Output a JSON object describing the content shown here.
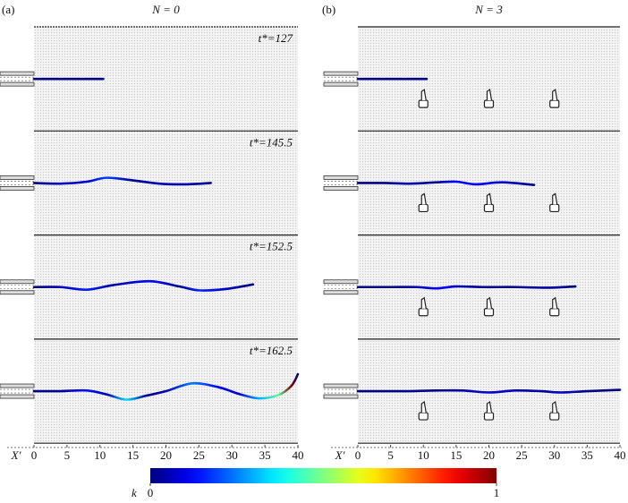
{
  "chart_data": [
    {
      "type": "line",
      "panel_label": "(a)",
      "title": "N = 0",
      "xlabel": "X'",
      "xlim": [
        0,
        40
      ],
      "xticks": [
        0,
        5,
        10,
        15,
        20,
        25,
        30,
        35,
        40
      ],
      "ylim": [
        -8,
        8
      ],
      "series": [
        {
          "name": "t*=127",
          "x": [
            0,
            5,
            10.5
          ],
          "values": [
            0,
            0,
            0
          ]
        },
        {
          "name": "t*=145.5",
          "x": [
            0,
            4,
            8,
            11,
            15,
            19,
            23,
            26.8
          ],
          "values": [
            0,
            -0.1,
            0.2,
            0.8,
            0.4,
            -0.1,
            -0.2,
            0
          ]
        },
        {
          "name": "t*=152.5",
          "x": [
            0,
            4,
            8,
            12,
            17.5,
            22,
            25,
            29,
            33.2
          ],
          "values": [
            0,
            0,
            -0.4,
            0.3,
            0.9,
            0.1,
            -0.5,
            -0.3,
            0.4
          ]
        },
        {
          "name": "t*=162.5",
          "x": [
            0,
            4,
            8,
            11,
            14,
            17,
            20,
            24,
            28,
            31,
            34,
            37,
            39,
            40
          ],
          "values": [
            0,
            0,
            0.1,
            -0.5,
            -1.3,
            -0.7,
            0,
            1.2,
            0.6,
            -0.4,
            -1.1,
            -0.6,
            0.8,
            2.6
          ]
        }
      ]
    },
    {
      "type": "line",
      "panel_label": "(b)",
      "title": "N = 3",
      "xlabel": "X'",
      "xlim": [
        0,
        40
      ],
      "xticks": [
        0,
        5,
        10,
        15,
        20,
        25,
        30,
        35,
        40
      ],
      "ylim": [
        -8,
        8
      ],
      "obstacles_x": [
        10,
        20,
        30
      ],
      "series": [
        {
          "x": [
            0,
            5,
            10.5
          ],
          "values": [
            0,
            0,
            0
          ]
        },
        {
          "x": [
            0,
            4,
            8,
            12,
            15,
            18,
            22,
            26.9
          ],
          "values": [
            0,
            0,
            -0.1,
            0.1,
            0.2,
            -0.2,
            0.1,
            -0.3
          ]
        },
        {
          "x": [
            0,
            5,
            9,
            12,
            15,
            19,
            24,
            29,
            33.2
          ],
          "values": [
            0,
            0,
            0,
            -0.2,
            0.1,
            0,
            0,
            -0.1,
            0.1
          ]
        },
        {
          "x": [
            0,
            5,
            8,
            12,
            16,
            20,
            24,
            28,
            31,
            35,
            40
          ],
          "values": [
            0,
            0,
            0,
            0.1,
            0.1,
            -0.2,
            0.1,
            0,
            -0.2,
            0,
            0.2
          ]
        }
      ]
    }
  ],
  "colorbar": {
    "label": "k",
    "ticks": [
      0,
      1
    ]
  }
}
